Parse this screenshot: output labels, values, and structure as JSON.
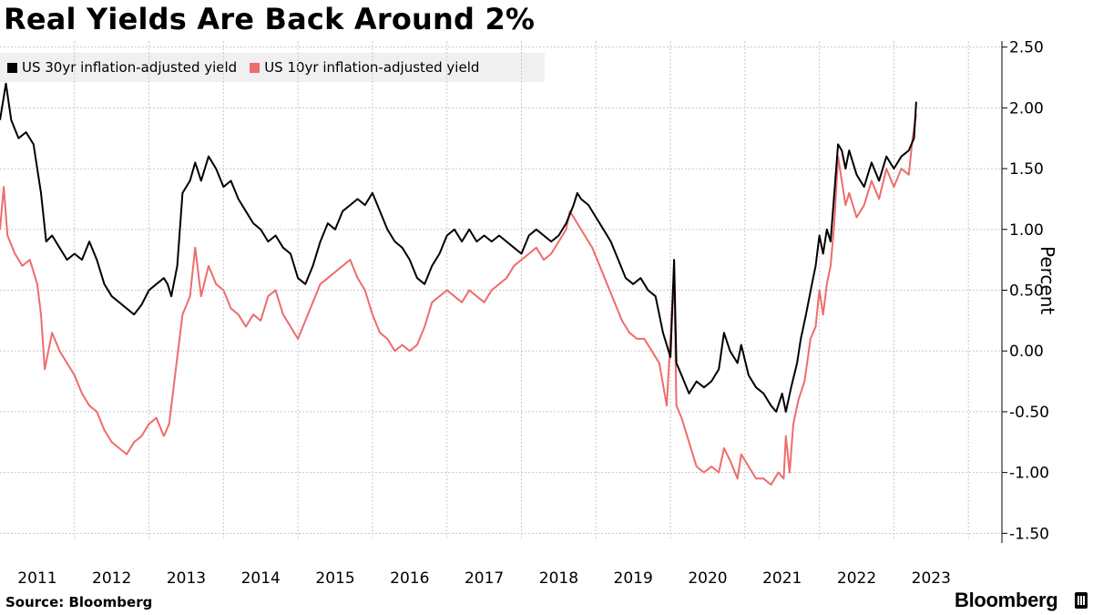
{
  "title": "Real Yields Are Back Around 2%",
  "source": "Source:  Bloomberg",
  "brand": "Bloomberg",
  "chart_data": {
    "type": "line",
    "title": "Real Yields Are Back Around 2%",
    "ylabel": "Percent",
    "xlabel": "",
    "ylim": [
      -1.55,
      2.55
    ],
    "xlim": [
      2010.0,
      2023.45
    ],
    "y_ticks": [
      2.5,
      2.0,
      1.5,
      1.0,
      0.5,
      0.0,
      -0.5,
      -1.0,
      -1.5
    ],
    "y_tick_labels": [
      "2.50",
      "2.00",
      "1.50",
      "1.00",
      "0.50",
      "0.00",
      "-0.50",
      "-1.00",
      "-1.50"
    ],
    "x_tick_labels": [
      "2011",
      "2012",
      "2013",
      "2014",
      "2015",
      "2016",
      "2017",
      "2018",
      "2019",
      "2020",
      "2021",
      "2022",
      "2023"
    ],
    "x_tick_label_centers": [
      2010.5,
      2011.5,
      2012.5,
      2013.5,
      2014.5,
      2015.5,
      2016.5,
      2017.5,
      2018.5,
      2019.5,
      2020.5,
      2021.5,
      2022.5
    ],
    "grid": true,
    "legend_position": "top-left",
    "series": [
      {
        "name": "US 30yr inflation-adjusted yield",
        "color": "#000000",
        "points": [
          [
            2010.0,
            1.9
          ],
          [
            2010.08,
            2.2
          ],
          [
            2010.15,
            1.9
          ],
          [
            2010.25,
            1.75
          ],
          [
            2010.35,
            1.8
          ],
          [
            2010.45,
            1.7
          ],
          [
            2010.55,
            1.3
          ],
          [
            2010.62,
            0.9
          ],
          [
            2010.7,
            0.95
          ],
          [
            2010.8,
            0.85
          ],
          [
            2010.9,
            0.75
          ],
          [
            2011.0,
            0.8
          ],
          [
            2011.1,
            0.75
          ],
          [
            2011.2,
            0.9
          ],
          [
            2011.3,
            0.75
          ],
          [
            2011.4,
            0.55
          ],
          [
            2011.5,
            0.45
          ],
          [
            2011.6,
            0.4
          ],
          [
            2011.7,
            0.35
          ],
          [
            2011.8,
            0.3
          ],
          [
            2011.9,
            0.38
          ],
          [
            2012.0,
            0.5
          ],
          [
            2012.1,
            0.55
          ],
          [
            2012.2,
            0.6
          ],
          [
            2012.25,
            0.55
          ],
          [
            2012.3,
            0.45
          ],
          [
            2012.38,
            0.7
          ],
          [
            2012.45,
            1.3
          ],
          [
            2012.55,
            1.4
          ],
          [
            2012.62,
            1.55
          ],
          [
            2012.7,
            1.4
          ],
          [
            2012.8,
            1.6
          ],
          [
            2012.9,
            1.5
          ],
          [
            2013.0,
            1.35
          ],
          [
            2013.1,
            1.4
          ],
          [
            2013.2,
            1.25
          ],
          [
            2013.3,
            1.15
          ],
          [
            2013.4,
            1.05
          ],
          [
            2013.5,
            1.0
          ],
          [
            2013.6,
            0.9
          ],
          [
            2013.7,
            0.95
          ],
          [
            2013.8,
            0.85
          ],
          [
            2013.9,
            0.8
          ],
          [
            2014.0,
            0.6
          ],
          [
            2014.1,
            0.55
          ],
          [
            2014.2,
            0.7
          ],
          [
            2014.3,
            0.9
          ],
          [
            2014.4,
            1.05
          ],
          [
            2014.5,
            1.0
          ],
          [
            2014.6,
            1.15
          ],
          [
            2014.7,
            1.2
          ],
          [
            2014.8,
            1.25
          ],
          [
            2014.9,
            1.2
          ],
          [
            2015.0,
            1.3
          ],
          [
            2015.1,
            1.15
          ],
          [
            2015.2,
            1.0
          ],
          [
            2015.3,
            0.9
          ],
          [
            2015.4,
            0.85
          ],
          [
            2015.5,
            0.75
          ],
          [
            2015.6,
            0.6
          ],
          [
            2015.7,
            0.55
          ],
          [
            2015.8,
            0.7
          ],
          [
            2015.9,
            0.8
          ],
          [
            2016.0,
            0.95
          ],
          [
            2016.1,
            1.0
          ],
          [
            2016.2,
            0.9
          ],
          [
            2016.3,
            1.0
          ],
          [
            2016.4,
            0.9
          ],
          [
            2016.5,
            0.95
          ],
          [
            2016.6,
            0.9
          ],
          [
            2016.7,
            0.95
          ],
          [
            2016.8,
            0.9
          ],
          [
            2016.9,
            0.85
          ],
          [
            2017.0,
            0.8
          ],
          [
            2017.1,
            0.95
          ],
          [
            2017.2,
            1.0
          ],
          [
            2017.3,
            0.95
          ],
          [
            2017.4,
            0.9
          ],
          [
            2017.5,
            0.95
          ],
          [
            2017.6,
            1.05
          ],
          [
            2017.7,
            1.2
          ],
          [
            2017.75,
            1.3
          ],
          [
            2017.8,
            1.25
          ],
          [
            2017.9,
            1.2
          ],
          [
            2018.0,
            1.1
          ],
          [
            2018.1,
            1.0
          ],
          [
            2018.2,
            0.9
          ],
          [
            2018.3,
            0.75
          ],
          [
            2018.4,
            0.6
          ],
          [
            2018.5,
            0.55
          ],
          [
            2018.6,
            0.6
          ],
          [
            2018.7,
            0.5
          ],
          [
            2018.8,
            0.45
          ],
          [
            2018.85,
            0.3
          ],
          [
            2018.9,
            0.15
          ],
          [
            2019.0,
            -0.05
          ],
          [
            2019.05,
            0.75
          ],
          [
            2019.08,
            -0.1
          ],
          [
            2019.15,
            -0.2
          ],
          [
            2019.25,
            -0.35
          ],
          [
            2019.35,
            -0.25
          ],
          [
            2019.45,
            -0.3
          ],
          [
            2019.55,
            -0.25
          ],
          [
            2019.65,
            -0.15
          ],
          [
            2019.72,
            0.15
          ],
          [
            2019.8,
            0.0
          ],
          [
            2019.9,
            -0.1
          ],
          [
            2019.95,
            0.05
          ],
          [
            2020.05,
            -0.2
          ],
          [
            2020.15,
            -0.3
          ],
          [
            2020.25,
            -0.35
          ],
          [
            2020.35,
            -0.45
          ],
          [
            2020.42,
            -0.5
          ],
          [
            2020.5,
            -0.35
          ],
          [
            2020.55,
            -0.5
          ],
          [
            2020.62,
            -0.3
          ],
          [
            2020.7,
            -0.1
          ],
          [
            2020.75,
            0.1
          ],
          [
            2020.82,
            0.3
          ],
          [
            2020.9,
            0.55
          ],
          [
            2020.95,
            0.7
          ],
          [
            2021.0,
            0.95
          ],
          [
            2021.05,
            0.8
          ],
          [
            2021.1,
            1.0
          ],
          [
            2021.15,
            0.9
          ],
          [
            2021.2,
            1.3
          ],
          [
            2021.25,
            1.7
          ],
          [
            2021.3,
            1.65
          ],
          [
            2021.35,
            1.5
          ],
          [
            2021.4,
            1.65
          ],
          [
            2021.5,
            1.45
          ],
          [
            2021.6,
            1.35
          ],
          [
            2021.7,
            1.55
          ],
          [
            2021.8,
            1.4
          ],
          [
            2021.9,
            1.6
          ],
          [
            2022.0,
            1.5
          ],
          [
            2022.1,
            1.6
          ],
          [
            2022.2,
            1.65
          ],
          [
            2022.27,
            1.75
          ],
          [
            2022.3,
            2.05
          ]
        ]
      },
      {
        "name": "US 10yr inflation-adjusted yield",
        "color": "#ee6c6c",
        "points": [
          [
            2010.0,
            1.0
          ],
          [
            2010.05,
            1.35
          ],
          [
            2010.1,
            0.95
          ],
          [
            2010.2,
            0.8
          ],
          [
            2010.3,
            0.7
          ],
          [
            2010.4,
            0.75
          ],
          [
            2010.5,
            0.55
          ],
          [
            2010.55,
            0.3
          ],
          [
            2010.6,
            -0.15
          ],
          [
            2010.7,
            0.15
          ],
          [
            2010.8,
            0.0
          ],
          [
            2010.9,
            -0.1
          ],
          [
            2011.0,
            -0.2
          ],
          [
            2011.1,
            -0.35
          ],
          [
            2011.2,
            -0.45
          ],
          [
            2011.3,
            -0.5
          ],
          [
            2011.4,
            -0.65
          ],
          [
            2011.5,
            -0.75
          ],
          [
            2011.6,
            -0.8
          ],
          [
            2011.7,
            -0.85
          ],
          [
            2011.8,
            -0.75
          ],
          [
            2011.9,
            -0.7
          ],
          [
            2012.0,
            -0.6
          ],
          [
            2012.1,
            -0.55
          ],
          [
            2012.2,
            -0.7
          ],
          [
            2012.27,
            -0.6
          ],
          [
            2012.35,
            -0.2
          ],
          [
            2012.45,
            0.3
          ],
          [
            2012.55,
            0.45
          ],
          [
            2012.62,
            0.85
          ],
          [
            2012.7,
            0.45
          ],
          [
            2012.8,
            0.7
          ],
          [
            2012.9,
            0.55
          ],
          [
            2013.0,
            0.5
          ],
          [
            2013.1,
            0.35
          ],
          [
            2013.2,
            0.3
          ],
          [
            2013.3,
            0.2
          ],
          [
            2013.4,
            0.3
          ],
          [
            2013.5,
            0.25
          ],
          [
            2013.6,
            0.45
          ],
          [
            2013.7,
            0.5
          ],
          [
            2013.8,
            0.3
          ],
          [
            2013.9,
            0.2
          ],
          [
            2014.0,
            0.1
          ],
          [
            2014.1,
            0.25
          ],
          [
            2014.2,
            0.4
          ],
          [
            2014.3,
            0.55
          ],
          [
            2014.4,
            0.6
          ],
          [
            2014.5,
            0.65
          ],
          [
            2014.6,
            0.7
          ],
          [
            2014.7,
            0.75
          ],
          [
            2014.8,
            0.6
          ],
          [
            2014.9,
            0.5
          ],
          [
            2015.0,
            0.3
          ],
          [
            2015.1,
            0.15
          ],
          [
            2015.2,
            0.1
          ],
          [
            2015.3,
            0.0
          ],
          [
            2015.4,
            0.05
          ],
          [
            2015.5,
            0.0
          ],
          [
            2015.6,
            0.05
          ],
          [
            2015.7,
            0.2
          ],
          [
            2015.8,
            0.4
          ],
          [
            2015.9,
            0.45
          ],
          [
            2016.0,
            0.5
          ],
          [
            2016.1,
            0.45
          ],
          [
            2016.2,
            0.4
          ],
          [
            2016.3,
            0.5
          ],
          [
            2016.4,
            0.45
          ],
          [
            2016.5,
            0.4
          ],
          [
            2016.6,
            0.5
          ],
          [
            2016.7,
            0.55
          ],
          [
            2016.8,
            0.6
          ],
          [
            2016.9,
            0.7
          ],
          [
            2017.0,
            0.75
          ],
          [
            2017.1,
            0.8
          ],
          [
            2017.2,
            0.85
          ],
          [
            2017.3,
            0.75
          ],
          [
            2017.4,
            0.8
          ],
          [
            2017.5,
            0.9
          ],
          [
            2017.6,
            1.0
          ],
          [
            2017.65,
            1.15
          ],
          [
            2017.75,
            1.05
          ],
          [
            2017.85,
            0.95
          ],
          [
            2017.95,
            0.85
          ],
          [
            2018.05,
            0.7
          ],
          [
            2018.15,
            0.55
          ],
          [
            2018.25,
            0.4
          ],
          [
            2018.35,
            0.25
          ],
          [
            2018.45,
            0.15
          ],
          [
            2018.55,
            0.1
          ],
          [
            2018.65,
            0.1
          ],
          [
            2018.75,
            0.0
          ],
          [
            2018.85,
            -0.1
          ],
          [
            2018.95,
            -0.45
          ],
          [
            2019.05,
            0.65
          ],
          [
            2019.08,
            -0.45
          ],
          [
            2019.15,
            -0.55
          ],
          [
            2019.25,
            -0.75
          ],
          [
            2019.35,
            -0.95
          ],
          [
            2019.45,
            -1.0
          ],
          [
            2019.55,
            -0.95
          ],
          [
            2019.65,
            -1.0
          ],
          [
            2019.72,
            -0.8
          ],
          [
            2019.8,
            -0.9
          ],
          [
            2019.9,
            -1.05
          ],
          [
            2019.95,
            -0.85
          ],
          [
            2020.05,
            -0.95
          ],
          [
            2020.15,
            -1.05
          ],
          [
            2020.25,
            -1.05
          ],
          [
            2020.35,
            -1.1
          ],
          [
            2020.45,
            -1.0
          ],
          [
            2020.52,
            -1.05
          ],
          [
            2020.55,
            -0.7
          ],
          [
            2020.6,
            -1.0
          ],
          [
            2020.65,
            -0.6
          ],
          [
            2020.72,
            -0.4
          ],
          [
            2020.8,
            -0.25
          ],
          [
            2020.88,
            0.1
          ],
          [
            2020.95,
            0.2
          ],
          [
            2021.0,
            0.5
          ],
          [
            2021.05,
            0.3
          ],
          [
            2021.1,
            0.55
          ],
          [
            2021.15,
            0.7
          ],
          [
            2021.2,
            1.05
          ],
          [
            2021.25,
            1.6
          ],
          [
            2021.3,
            1.4
          ],
          [
            2021.35,
            1.2
          ],
          [
            2021.4,
            1.3
          ],
          [
            2021.5,
            1.1
          ],
          [
            2021.6,
            1.2
          ],
          [
            2021.7,
            1.4
          ],
          [
            2021.8,
            1.25
          ],
          [
            2021.9,
            1.5
          ],
          [
            2022.0,
            1.35
          ],
          [
            2022.1,
            1.5
          ],
          [
            2022.2,
            1.45
          ],
          [
            2022.25,
            1.75
          ],
          [
            2022.3,
            1.95
          ]
        ]
      }
    ]
  }
}
